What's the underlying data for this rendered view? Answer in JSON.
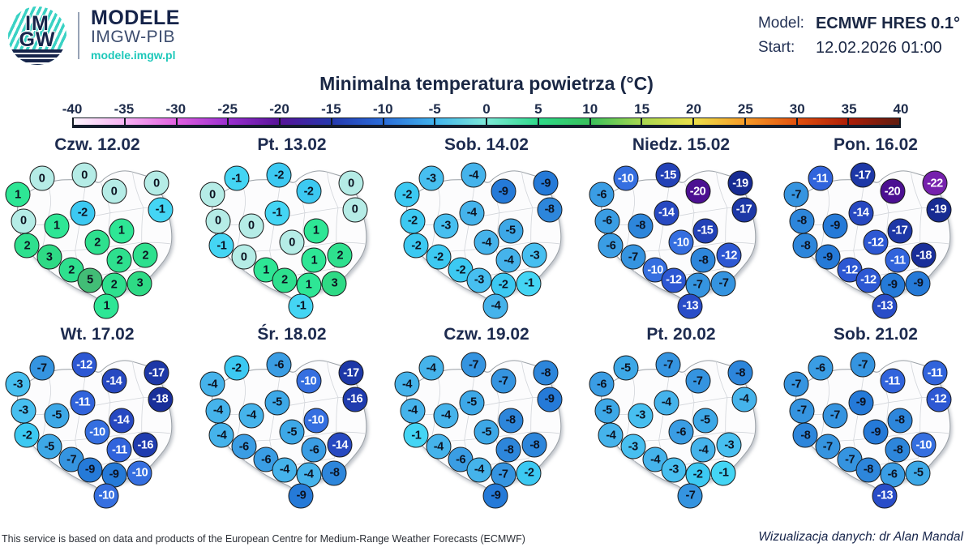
{
  "brand": {
    "logo_line1": "IM",
    "logo_line2": "GW",
    "name": "MODELE",
    "org": "IMGW-PIB",
    "url": "modele.imgw.pl"
  },
  "model": {
    "model_label": "Model:",
    "model_value": "ECMWF HRES 0.1°",
    "start_label": "Start:",
    "start_value": "12.02.2026 01:00"
  },
  "title": "Minimalna temperatura powietrza (°C)",
  "colorbar": {
    "tick_labels": [
      "-40",
      "-35",
      "-30",
      "-25",
      "-20",
      "-15",
      "-10",
      "-5",
      "0",
      "5",
      "10",
      "15",
      "20",
      "25",
      "30",
      "35",
      "40"
    ],
    "gradient_stops": [
      "#fdf6fd",
      "#f7b3f3",
      "#e060e0",
      "#9a2fd0",
      "#571499",
      "#2438ae",
      "#2a6cd9",
      "#41b3ed",
      "#7de9d8",
      "#2eda8a",
      "#38c05b",
      "#a8d750",
      "#ece04b",
      "#f59a28",
      "#e1500e",
      "#ad1d07",
      "#5e1c10"
    ]
  },
  "value_colors": {
    "5": "#42bd76",
    "3": "#2eda85",
    "2": "#2ee08e",
    "1": "#2ee695",
    "0": "#b5ece6",
    "-1": "#44d5f4",
    "-2": "#3cc9f2",
    "-3": "#47bff0",
    "-4": "#45b3eb",
    "-5": "#3da8e7",
    "-6": "#3a9de4",
    "-7": "#3594e0",
    "-8": "#2d86db",
    "-9": "#257ad8",
    "-10": "#356fe0",
    "-11": "#3164dc",
    "-12": "#2d58d3",
    "-13": "#294dc8",
    "-14": "#2749c1",
    "-15": "#2342b7",
    "-16": "#1f3caf",
    "-17": "#1d38a7",
    "-18": "#192f9a",
    "-19": "#172b92",
    "-20": "#4c1092",
    "-22": "#7621ad"
  },
  "points": [
    {
      "x": 20,
      "y": 13
    },
    {
      "x": 43,
      "y": 11
    },
    {
      "x": 7,
      "y": 23
    },
    {
      "x": 59,
      "y": 21
    },
    {
      "x": 82,
      "y": 16
    },
    {
      "x": 42,
      "y": 34
    },
    {
      "x": 84,
      "y": 32
    },
    {
      "x": 10,
      "y": 39
    },
    {
      "x": 28,
      "y": 42
    },
    {
      "x": 63,
      "y": 45
    },
    {
      "x": 50,
      "y": 52
    },
    {
      "x": 12,
      "y": 54
    },
    {
      "x": 24,
      "y": 61
    },
    {
      "x": 76,
      "y": 60
    },
    {
      "x": 62,
      "y": 63
    },
    {
      "x": 36,
      "y": 69
    },
    {
      "x": 46,
      "y": 75
    },
    {
      "x": 59,
      "y": 78
    },
    {
      "x": 73,
      "y": 77
    },
    {
      "x": 55,
      "y": 91
    }
  ],
  "maps": [
    {
      "day": "Czw. 12.02",
      "values": [
        0,
        0,
        1,
        0,
        0,
        -2,
        -1,
        0,
        1,
        1,
        2,
        2,
        3,
        2,
        2,
        2,
        5,
        2,
        3,
        1
      ]
    },
    {
      "day": "Pt. 13.02",
      "values": [
        -1,
        -2,
        0,
        -2,
        0,
        -1,
        0,
        0,
        0,
        1,
        0,
        -1,
        0,
        2,
        1,
        1,
        2,
        1,
        3,
        -1
      ]
    },
    {
      "day": "Sob. 14.02",
      "values": [
        -3,
        -4,
        -2,
        -9,
        -9,
        -4,
        -8,
        -2,
        -3,
        -5,
        -4,
        -2,
        -2,
        -3,
        -4,
        -2,
        -3,
        -2,
        -1,
        -4
      ]
    },
    {
      "day": "Niedz. 15.02",
      "values": [
        -10,
        -15,
        -6,
        -20,
        -19,
        -14,
        -17,
        -6,
        -8,
        -15,
        -10,
        -6,
        -7,
        -12,
        -8,
        -10,
        -12,
        -7,
        -7,
        -13
      ]
    },
    {
      "day": "Pon. 16.02",
      "values": [
        -11,
        -17,
        -7,
        -20,
        -22,
        -14,
        -19,
        -8,
        -9,
        -17,
        -12,
        -8,
        -9,
        -18,
        -11,
        -12,
        -12,
        -9,
        -9,
        -13
      ]
    },
    {
      "day": "Wt. 17.02",
      "values": [
        -7,
        -12,
        -3,
        -14,
        -17,
        -11,
        -18,
        -3,
        -5,
        -14,
        -10,
        -2,
        -5,
        -16,
        -11,
        -7,
        -9,
        -9,
        -10,
        -10
      ]
    },
    {
      "day": "Śr. 18.02",
      "values": [
        -2,
        -6,
        -4,
        -10,
        -17,
        -5,
        -16,
        -4,
        -4,
        -10,
        -5,
        -4,
        -6,
        -14,
        -6,
        -6,
        -4,
        -4,
        -8,
        -9
      ]
    },
    {
      "day": "Czw. 19.02",
      "values": [
        -4,
        -7,
        -4,
        -7,
        -8,
        -5,
        -9,
        -4,
        -4,
        -8,
        -5,
        -1,
        -4,
        -8,
        -8,
        -6,
        -4,
        -7,
        -2,
        -9
      ]
    },
    {
      "day": "Pt. 20.02",
      "values": [
        -5,
        -7,
        -6,
        -7,
        -8,
        -4,
        -4,
        -5,
        -3,
        -5,
        -6,
        -4,
        -3,
        -3,
        -4,
        -4,
        -3,
        -2,
        -1,
        -7
      ]
    },
    {
      "day": "Sob. 21.02",
      "values": [
        -6,
        -7,
        -7,
        -11,
        -11,
        -9,
        -12,
        -7,
        -7,
        -8,
        -9,
        -8,
        -7,
        -10,
        -8,
        -7,
        -8,
        -6,
        -5,
        -13
      ]
    }
  ],
  "footer": {
    "left": "This service is based on data and products of the European Centre for Medium-Range Weather Forecasts (ECMWF)",
    "right": "Wizualizacja danych: dr Alan Mandal"
  }
}
